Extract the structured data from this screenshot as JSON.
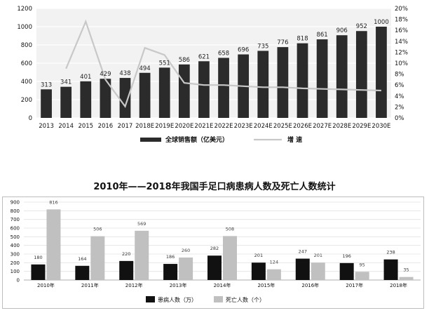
{
  "chart_data": [
    {
      "type": "bar",
      "title": "",
      "categories": [
        "2013",
        "2014",
        "2015",
        "2016",
        "2017",
        "2018E",
        "2019E",
        "2020E",
        "2021E",
        "2022E",
        "2023E",
        "2024E",
        "2025E",
        "2026E",
        "2027E",
        "2028E",
        "2029E",
        "2030E"
      ],
      "series": [
        {
          "name": "全球销售额（亿美元）",
          "type": "bar",
          "axis": "left",
          "values": [
            313,
            341,
            401,
            429,
            438,
            494,
            551,
            586,
            621,
            658,
            696,
            735,
            776,
            818,
            861,
            906,
            952,
            1000
          ]
        },
        {
          "name": "增  速",
          "type": "line",
          "axis": "right",
          "values": [
            null,
            9.0,
            17.6,
            7.0,
            2.1,
            12.8,
            11.5,
            6.4,
            6.0,
            6.0,
            5.8,
            5.6,
            5.6,
            5.4,
            5.3,
            5.2,
            5.1,
            5.0
          ]
        }
      ],
      "data_labels": [
        "313",
        "341",
        "401",
        "429",
        "438",
        "494",
        "551",
        "586",
        "621",
        "658",
        "696",
        "735",
        "776",
        "818",
        "861",
        "906",
        "952",
        "1000"
      ],
      "yticks_left": [
        "0",
        "200",
        "400",
        "600",
        "800",
        "1000",
        "1200"
      ],
      "yticks_right": [
        "0%",
        "2%",
        "4%",
        "6%",
        "8%",
        "10%",
        "12%",
        "14%",
        "16%",
        "18%",
        "20%"
      ],
      "ylim_left": [
        0,
        1200
      ],
      "ylim_right": [
        0,
        20
      ],
      "grid": true,
      "legend_position": "bottom",
      "colors": {
        "bar": "#2b2b2b",
        "line": "#c8c8c8",
        "label": "#ffffff",
        "grid": "#ffffff",
        "plot_bg": "#f2f2f2"
      }
    },
    {
      "type": "bar",
      "title": "2010年——2018年我国手足口病患病人数及死亡人数统计",
      "categories": [
        "2010年",
        "2011年",
        "2012年",
        "2013年",
        "2014年",
        "2015年",
        "2016年",
        "2017年",
        "2018年"
      ],
      "series": [
        {
          "name": "患病人数（万）",
          "values": [
            180,
            164,
            220,
            186,
            282,
            201,
            247,
            196,
            238
          ]
        },
        {
          "name": "死亡人数（个）",
          "values": [
            816,
            506,
            569,
            260,
            508,
            124,
            201,
            95,
            35
          ]
        }
      ],
      "yticks": [
        "0",
        "100",
        "200",
        "300",
        "400",
        "500",
        "600",
        "700",
        "800",
        "900"
      ],
      "ylim": [
        0,
        900
      ],
      "grid": true,
      "legend_position": "bottom",
      "colors": {
        "series1": "#111111",
        "series2": "#c0c0c0",
        "label1": "#ffffff",
        "label2": "#444444"
      }
    }
  ]
}
